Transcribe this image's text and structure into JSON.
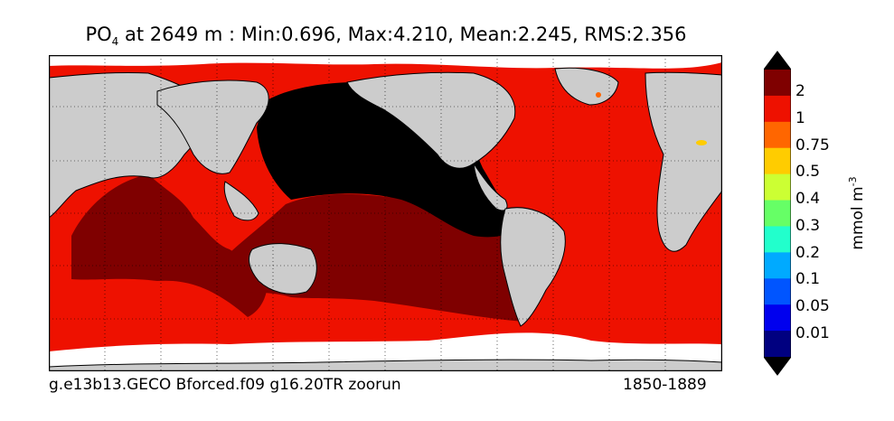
{
  "title": {
    "variable": "PO",
    "subscript": "4",
    "rest": " at 2649 m : Min:0.696, Max:4.210, Mean:2.245, RMS:2.356"
  },
  "colorbar": {
    "label": "mmol m",
    "label_sup": "-3",
    "ticks": [
      "2",
      "1",
      "0.75",
      "0.5",
      "0.4",
      "0.3",
      "0.2",
      "0.1",
      "0.05",
      "0.01"
    ],
    "colors_top_to_bottom": [
      "#7f0000",
      "#ee1100",
      "#ff6600",
      "#ffcc00",
      "#ccff33",
      "#66ff66",
      "#22ffcc",
      "#00aaff",
      "#0055ff",
      "#0000ee",
      "#000080"
    ],
    "over_color": "#000000",
    "under_color": "#000000"
  },
  "map": {
    "land_color": "#cccccc",
    "nodata_color": "#ffffff",
    "max_color": "#000000",
    "grid": "dotted"
  },
  "footer": {
    "left": "g.e13b13.GECO Bforced.f09 g16.20TR zoorun",
    "right": "1850-1889"
  }
}
